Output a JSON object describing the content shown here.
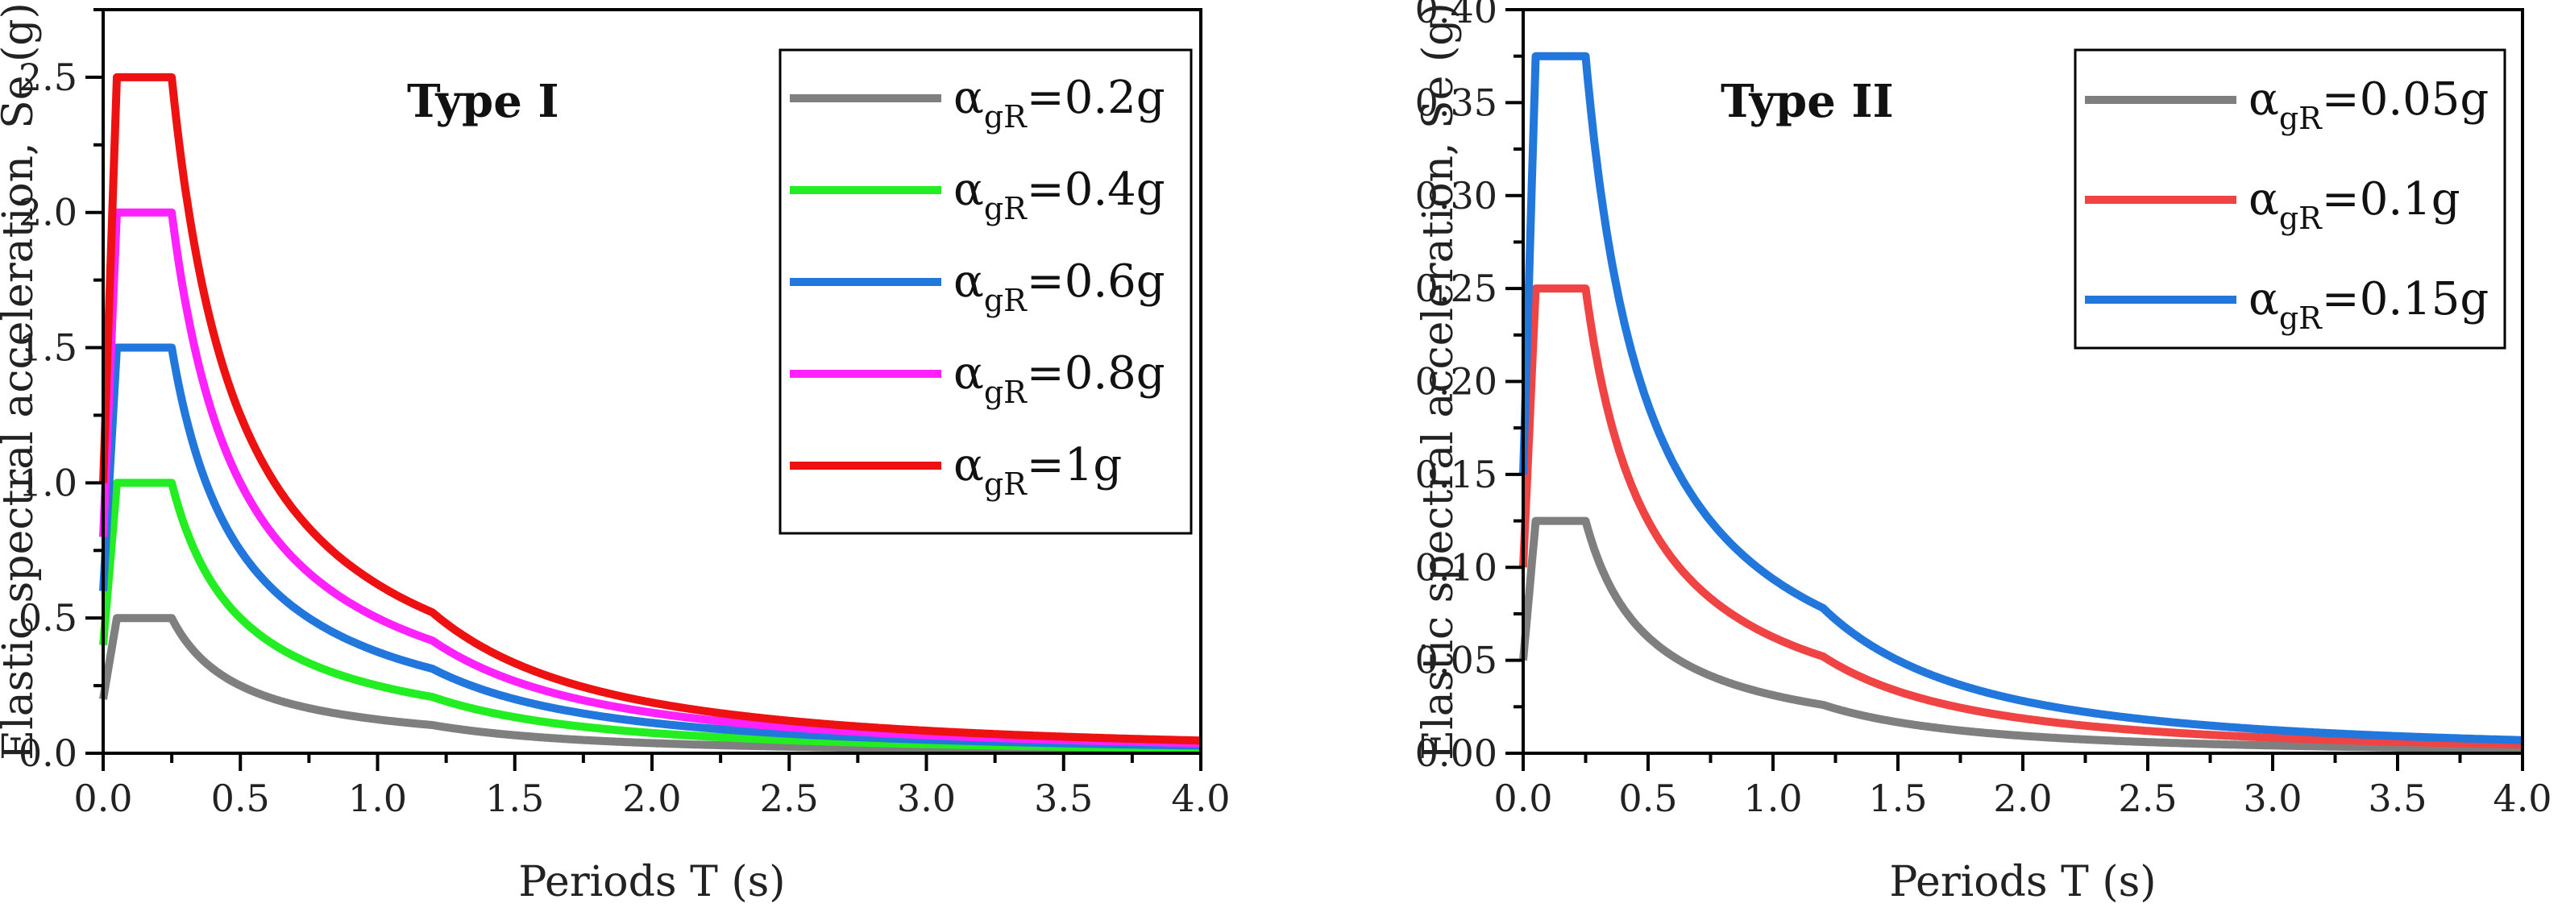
{
  "chart_data": [
    {
      "type": "line",
      "title": "Type I",
      "xlabel": "Periods T (s)",
      "ylabel": "Elastic spectral acceleration, Se (g)",
      "xlim": [
        0,
        4.0
      ],
      "ylim": [
        0,
        2.75
      ],
      "xticks": [
        "0.0",
        "0.5",
        "1.0",
        "1.5",
        "2.0",
        "2.5",
        "3.0",
        "3.5",
        "4.0"
      ],
      "yticks": [
        "0.0",
        "0.5",
        "1.0",
        "1.5",
        "2.0",
        "2.5"
      ],
      "legend_position": "top-right",
      "spectrum": {
        "TB": 0.05,
        "TC": 0.25,
        "TD": 1.2,
        "eta": 2.5,
        "soil": 1.0
      },
      "series": [
        {
          "name": "0.2g",
          "ag": 0.2,
          "color": "#7f7f7f"
        },
        {
          "name": "0.4g",
          "ag": 0.4,
          "color": "#22ee22"
        },
        {
          "name": "0.6g",
          "ag": 0.6,
          "color": "#2277dd"
        },
        {
          "name": "0.8g",
          "ag": 0.8,
          "color": "#ff22ff"
        },
        {
          "name": "1g",
          "ag": 1.0,
          "color": "#ee1111"
        }
      ]
    },
    {
      "type": "line",
      "title": "Type II",
      "xlabel": "Periods T (s)",
      "ylabel": "Elastic spectral acceleration, Se (g)",
      "xlim": [
        0,
        4.0
      ],
      "ylim": [
        0,
        0.4
      ],
      "xticks": [
        "0.0",
        "0.5",
        "1.0",
        "1.5",
        "2.0",
        "2.5",
        "3.0",
        "3.5",
        "4.0"
      ],
      "yticks": [
        "0.00",
        "0.05",
        "0.10",
        "0.15",
        "0.20",
        "0.25",
        "0.30",
        "0.35",
        "0.40"
      ],
      "legend_position": "top-right",
      "spectrum": {
        "TB": 0.05,
        "TC": 0.25,
        "TD": 1.2,
        "eta": 2.5,
        "soil": 1.0
      },
      "series": [
        {
          "name": "0.05g",
          "ag": 0.05,
          "color": "#7f7f7f"
        },
        {
          "name": "0.1g",
          "ag": 0.1,
          "color": "#f04444"
        },
        {
          "name": "0.15g",
          "ag": 0.15,
          "color": "#2277dd"
        }
      ]
    }
  ],
  "legend_symbol": "α",
  "legend_subscript": "gR",
  "legend_equals": "="
}
